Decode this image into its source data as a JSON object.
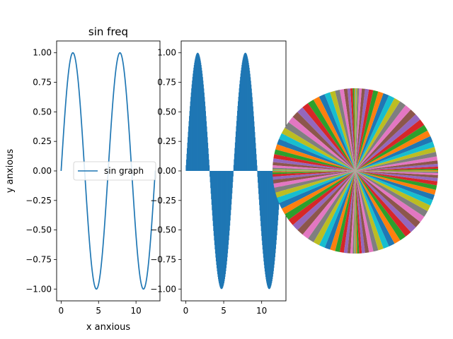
{
  "chart_data": [
    {
      "type": "line",
      "title": "sin freq",
      "xlabel": "x anxious",
      "ylabel": "y anxious",
      "xlim": [
        -0.6,
        13.2
      ],
      "ylim": [
        -1.1,
        1.1
      ],
      "xticks": [
        0,
        5,
        10
      ],
      "yticks": [
        -1.0,
        -0.75,
        -0.5,
        -0.25,
        0.0,
        0.25,
        0.5,
        0.75,
        1.0
      ],
      "ytick_labels": [
        "−1.00",
        "−0.75",
        "−0.50",
        "−0.25",
        "0.00",
        "0.25",
        "0.50",
        "0.75",
        "1.00"
      ],
      "series": [
        {
          "name": "sin graph",
          "function": "sin(x)",
          "x_range": [
            0,
            12.57
          ],
          "color": "#1f77b4"
        }
      ],
      "legend": "center-right"
    },
    {
      "type": "bar",
      "title": "",
      "xlabel": "",
      "ylabel": "",
      "xlim": [
        -0.6,
        13.2
      ],
      "ylim": [
        -1.1,
        1.1
      ],
      "xticks": [
        0,
        5,
        10
      ],
      "yticks": [
        -1.0,
        -0.75,
        -0.5,
        -0.25,
        0.0,
        0.25,
        0.5,
        0.75,
        1.0
      ],
      "ytick_labels": [
        "−1.00",
        "−0.75",
        "−0.50",
        "−0.25",
        "0.00",
        "0.25",
        "0.50",
        "0.75",
        "1.00"
      ],
      "series": [
        {
          "function": "sin(x)",
          "x_range": [
            0,
            12.57
          ],
          "color": "#1f77b4"
        }
      ]
    },
    {
      "type": "pie",
      "title": "",
      "values_function": "|sin(x)| for x in 0..12.57",
      "slice_count": 120,
      "colors": [
        "#1f77b4",
        "#ff7f0e",
        "#2ca02c",
        "#d62728",
        "#9467bd",
        "#8c564b",
        "#e377c2",
        "#7f7f7f",
        "#bcbd22",
        "#17becf"
      ]
    }
  ]
}
